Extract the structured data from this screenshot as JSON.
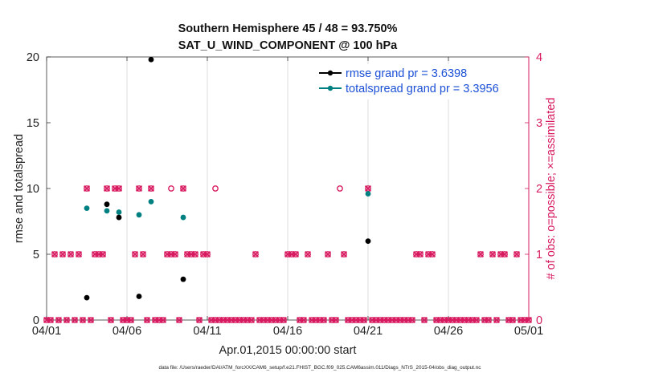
{
  "chart_data": {
    "type": "scatter",
    "title": [
      "Southern Hemisphere 45 / 48 = 93.750%",
      "SAT_U_WIND_COMPONENT @ 100 hPa"
    ],
    "xlabel": "Apr.01,2015 00:00:00 start",
    "ylabel": "rmse and totalspread",
    "y2label": "# of obs: o=possible; ×=assimilated",
    "footer": "data file: /Users/raeder/DAI/ATM_forcXX/CAM6_setup/f.e21.FHIST_BGC.f09_025.CAM6assim.011/Diags_NTrS_2015-04/obs_diag_output.nc",
    "xlim": [
      0,
      30
    ],
    "ylim": [
      0,
      20
    ],
    "y2lim": [
      0,
      4
    ],
    "xticks": [
      0,
      5,
      10,
      15,
      20,
      25,
      30
    ],
    "xticklabels": [
      "04/01",
      "04/06",
      "04/11",
      "04/16",
      "04/21",
      "04/26",
      "05/01"
    ],
    "yticks": [
      0,
      5,
      10,
      15,
      20
    ],
    "yticklabels": [
      "0",
      "5",
      "10",
      "15",
      "20"
    ],
    "y2ticks": [
      0,
      1,
      2,
      3,
      4
    ],
    "y2ticklabels": [
      "0",
      "1",
      "2",
      "3",
      "4"
    ],
    "grid": true,
    "legend_position": "top-right",
    "colors": {
      "rmse": "#000000",
      "totalspread": "#008080",
      "obs": "#D81B60",
      "legend_text": "#1a4fd6"
    },
    "series": [
      {
        "name": "rmse grand pr = 3.6398",
        "color": "#000000",
        "points": [
          [
            2.5,
            1.7
          ],
          [
            3.75,
            8.8
          ],
          [
            4.5,
            7.8
          ],
          [
            5.75,
            1.8
          ],
          [
            6.5,
            19.8
          ],
          [
            8.5,
            3.1
          ],
          [
            20,
            6.0
          ]
        ]
      },
      {
        "name": "totalspread grand pr = 3.3956",
        "color": "#008080",
        "points": [
          [
            2.5,
            8.5
          ],
          [
            3.75,
            8.3
          ],
          [
            4.5,
            8.2
          ],
          [
            5.75,
            8.0
          ],
          [
            6.5,
            9.0
          ],
          [
            8.5,
            7.8
          ],
          [
            20,
            9.6
          ]
        ]
      }
    ],
    "obs_possible": [
      [
        0,
        0
      ],
      [
        0.25,
        0
      ],
      [
        0.5,
        1
      ],
      [
        0.75,
        0
      ],
      [
        1,
        1
      ],
      [
        1.25,
        0
      ],
      [
        1.5,
        1
      ],
      [
        1.75,
        0
      ],
      [
        2,
        1
      ],
      [
        2.25,
        0
      ],
      [
        2.5,
        2
      ],
      [
        2.75,
        0
      ],
      [
        3,
        1
      ],
      [
        3.25,
        1
      ],
      [
        3.5,
        1
      ],
      [
        3.75,
        2
      ],
      [
        4,
        0
      ],
      [
        4.25,
        2
      ],
      [
        4.5,
        2
      ],
      [
        4.75,
        0
      ],
      [
        5,
        0
      ],
      [
        5.25,
        0
      ],
      [
        5.5,
        1
      ],
      [
        5.75,
        2
      ],
      [
        6,
        1
      ],
      [
        6.25,
        0
      ],
      [
        6.5,
        2
      ],
      [
        6.75,
        0
      ],
      [
        7,
        0
      ],
      [
        7.25,
        0
      ],
      [
        7.5,
        1
      ],
      [
        7.75,
        1
      ],
      [
        7.75,
        2
      ],
      [
        8,
        1
      ],
      [
        8.25,
        0
      ],
      [
        8.5,
        2
      ],
      [
        8.75,
        1
      ],
      [
        9,
        1
      ],
      [
        9.25,
        1
      ],
      [
        9.5,
        0
      ],
      [
        9.75,
        1
      ],
      [
        10,
        1
      ],
      [
        10.25,
        0
      ],
      [
        10.5,
        0
      ],
      [
        10.5,
        2
      ],
      [
        10.75,
        0
      ],
      [
        11,
        0
      ],
      [
        11.25,
        0
      ],
      [
        11.5,
        0
      ],
      [
        11.75,
        0
      ],
      [
        12,
        0
      ],
      [
        12.25,
        0
      ],
      [
        12.5,
        0
      ],
      [
        12.75,
        0
      ],
      [
        13,
        1
      ],
      [
        13.25,
        0
      ],
      [
        13.5,
        0
      ],
      [
        13.75,
        0
      ],
      [
        14,
        0
      ],
      [
        14.25,
        0
      ],
      [
        14.5,
        0
      ],
      [
        14.75,
        0
      ],
      [
        15,
        1
      ],
      [
        15.25,
        1
      ],
      [
        15.5,
        1
      ],
      [
        15.75,
        0
      ],
      [
        16,
        0
      ],
      [
        16.25,
        1
      ],
      [
        16.5,
        0
      ],
      [
        16.75,
        0
      ],
      [
        17,
        0
      ],
      [
        17.25,
        0
      ],
      [
        17.5,
        1
      ],
      [
        17.75,
        0
      ],
      [
        18,
        0
      ],
      [
        18.25,
        2
      ],
      [
        18.5,
        1
      ],
      [
        18.75,
        0
      ],
      [
        19,
        0
      ],
      [
        19.25,
        0
      ],
      [
        19.5,
        0
      ],
      [
        19.75,
        0
      ],
      [
        20,
        2
      ],
      [
        20.25,
        0
      ],
      [
        20.5,
        0
      ],
      [
        20.75,
        0
      ],
      [
        21,
        0
      ],
      [
        21.25,
        0
      ],
      [
        21.5,
        0
      ],
      [
        21.75,
        0
      ],
      [
        22,
        0
      ],
      [
        22.25,
        0
      ],
      [
        22.5,
        0
      ],
      [
        22.75,
        0
      ],
      [
        23,
        1
      ],
      [
        23.25,
        1
      ],
      [
        23.5,
        0
      ],
      [
        23.75,
        1
      ],
      [
        24,
        1
      ],
      [
        24.25,
        0
      ],
      [
        24.5,
        0
      ],
      [
        24.75,
        0
      ],
      [
        25,
        0
      ],
      [
        25.25,
        0
      ],
      [
        25.5,
        0
      ],
      [
        25.75,
        0
      ],
      [
        26,
        0
      ],
      [
        26.25,
        0
      ],
      [
        26.5,
        0
      ],
      [
        26.75,
        0
      ],
      [
        27,
        1
      ],
      [
        27.25,
        0
      ],
      [
        27.5,
        0
      ],
      [
        27.75,
        1
      ],
      [
        28,
        0
      ],
      [
        28.25,
        1
      ],
      [
        28.5,
        1
      ],
      [
        28.75,
        0
      ],
      [
        29,
        0
      ],
      [
        29.25,
        1
      ],
      [
        29.5,
        0
      ],
      [
        29.75,
        0
      ],
      [
        30,
        0
      ]
    ],
    "obs_assimilated": [
      [
        0,
        0
      ],
      [
        0.25,
        0
      ],
      [
        0.5,
        1
      ],
      [
        0.75,
        0
      ],
      [
        1,
        1
      ],
      [
        1.25,
        0
      ],
      [
        1.5,
        1
      ],
      [
        1.75,
        0
      ],
      [
        2,
        1
      ],
      [
        2.25,
        0
      ],
      [
        2.5,
        2
      ],
      [
        2.75,
        0
      ],
      [
        3,
        1
      ],
      [
        3.25,
        1
      ],
      [
        3.5,
        1
      ],
      [
        3.75,
        2
      ],
      [
        4,
        0
      ],
      [
        4.25,
        2
      ],
      [
        4.5,
        2
      ],
      [
        4.75,
        0
      ],
      [
        5,
        0
      ],
      [
        5.25,
        0
      ],
      [
        5.5,
        1
      ],
      [
        5.75,
        2
      ],
      [
        6,
        1
      ],
      [
        6.25,
        0
      ],
      [
        6.5,
        2
      ],
      [
        6.75,
        0
      ],
      [
        7,
        0
      ],
      [
        7.25,
        0
      ],
      [
        7.5,
        1
      ],
      [
        7.75,
        1
      ],
      [
        8,
        1
      ],
      [
        8.25,
        0
      ],
      [
        8.5,
        2
      ],
      [
        8.75,
        1
      ],
      [
        9,
        1
      ],
      [
        9.25,
        1
      ],
      [
        9.5,
        0
      ],
      [
        9.75,
        1
      ],
      [
        10,
        1
      ],
      [
        10.25,
        0
      ],
      [
        10.5,
        0
      ],
      [
        10.75,
        0
      ],
      [
        11,
        0
      ],
      [
        11.25,
        0
      ],
      [
        11.5,
        0
      ],
      [
        11.75,
        0
      ],
      [
        12,
        0
      ],
      [
        12.25,
        0
      ],
      [
        12.5,
        0
      ],
      [
        12.75,
        0
      ],
      [
        13,
        1
      ],
      [
        13.25,
        0
      ],
      [
        13.5,
        0
      ],
      [
        13.75,
        0
      ],
      [
        14,
        0
      ],
      [
        14.25,
        0
      ],
      [
        14.5,
        0
      ],
      [
        14.75,
        0
      ],
      [
        15,
        1
      ],
      [
        15.25,
        1
      ],
      [
        15.5,
        1
      ],
      [
        15.75,
        0
      ],
      [
        16,
        0
      ],
      [
        16.25,
        1
      ],
      [
        16.5,
        0
      ],
      [
        16.75,
        0
      ],
      [
        17,
        0
      ],
      [
        17.25,
        0
      ],
      [
        17.5,
        1
      ],
      [
        17.75,
        0
      ],
      [
        18,
        0
      ],
      [
        18.5,
        1
      ],
      [
        18.75,
        0
      ],
      [
        19,
        0
      ],
      [
        19.25,
        0
      ],
      [
        19.5,
        0
      ],
      [
        19.75,
        0
      ],
      [
        20,
        2
      ],
      [
        20.25,
        0
      ],
      [
        20.5,
        0
      ],
      [
        20.75,
        0
      ],
      [
        21,
        0
      ],
      [
        21.25,
        0
      ],
      [
        21.5,
        0
      ],
      [
        21.75,
        0
      ],
      [
        22,
        0
      ],
      [
        22.25,
        0
      ],
      [
        22.5,
        0
      ],
      [
        22.75,
        0
      ],
      [
        23,
        1
      ],
      [
        23.25,
        1
      ],
      [
        23.5,
        0
      ],
      [
        23.75,
        1
      ],
      [
        24,
        1
      ],
      [
        24.25,
        0
      ],
      [
        24.5,
        0
      ],
      [
        24.75,
        0
      ],
      [
        25,
        0
      ],
      [
        25.25,
        0
      ],
      [
        25.5,
        0
      ],
      [
        25.75,
        0
      ],
      [
        26,
        0
      ],
      [
        26.25,
        0
      ],
      [
        26.5,
        0
      ],
      [
        26.75,
        0
      ],
      [
        27,
        1
      ],
      [
        27.25,
        0
      ],
      [
        27.5,
        0
      ],
      [
        27.75,
        1
      ],
      [
        28,
        0
      ],
      [
        28.25,
        1
      ],
      [
        28.5,
        1
      ],
      [
        28.75,
        0
      ],
      [
        29,
        0
      ],
      [
        29.25,
        1
      ],
      [
        29.5,
        0
      ],
      [
        29.75,
        0
      ],
      [
        30,
        0
      ]
    ]
  }
}
